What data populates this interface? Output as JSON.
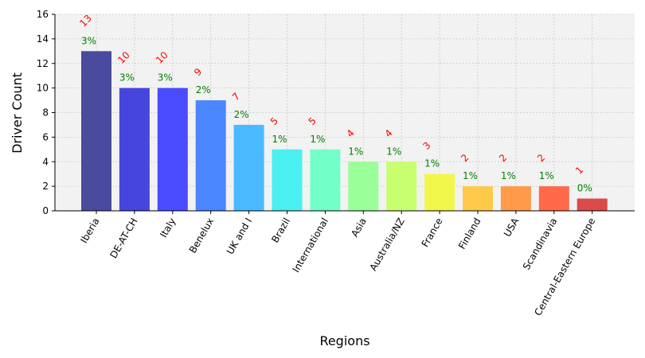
{
  "chart_data": {
    "type": "bar",
    "xlabel": "Regions",
    "ylabel": "Driver Count",
    "ylim": [
      0,
      16
    ],
    "yticks": [
      0,
      2,
      4,
      6,
      8,
      10,
      12,
      14,
      16
    ],
    "grid": true,
    "categories": [
      "Iberia",
      "DE-AT-CH",
      "Italy",
      "Benelux",
      "UK and I",
      "Brazil",
      "International",
      "Asia",
      "Australia/NZ",
      "France",
      "Finland",
      "USA",
      "Scandinavia",
      "Central-Eastern Europe"
    ],
    "values": [
      13,
      10,
      10,
      9,
      7,
      5,
      5,
      4,
      4,
      3,
      2,
      2,
      2,
      1
    ],
    "count_labels": [
      "13",
      "10",
      "10",
      "9",
      "7",
      "5",
      "5",
      "4",
      "4",
      "3",
      "2",
      "2",
      "2",
      "1"
    ],
    "percent_labels": [
      "3%",
      "3%",
      "3%",
      "2%",
      "2%",
      "1%",
      "1%",
      "1%",
      "1%",
      "1%",
      "1%",
      "1%",
      "1%",
      "0%"
    ],
    "colors": [
      "#4a4a9e",
      "#4646de",
      "#4a4aff",
      "#4a86ff",
      "#4ab9ff",
      "#4aeff0",
      "#72ffc8",
      "#9aff98",
      "#c8ff6e",
      "#f0f74a",
      "#ffca4a",
      "#ff9a4a",
      "#ff6a4a",
      "#dc4a4a"
    ],
    "count_color": "#ff0000",
    "percent_color": "#008000"
  }
}
